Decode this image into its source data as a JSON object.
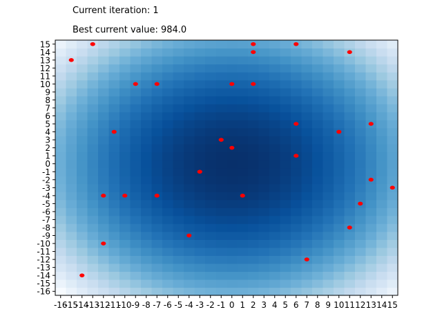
{
  "header": {
    "iteration_text": "Current iteration: 1",
    "best_value_text": "Best current value: 984.0"
  },
  "chart_data": {
    "type": "heatmap",
    "title": "",
    "xlabel": "",
    "ylabel": "",
    "xlim": [
      -16,
      15
    ],
    "ylim": [
      -16,
      15
    ],
    "colormap": "Blues",
    "grid": false,
    "heatmap_function": "x^2 + y^2",
    "x_tick_labels": [
      "-16",
      "-15",
      "-14",
      "-13",
      "-12",
      "-11",
      "-10",
      "-9",
      "-8",
      "-7",
      "-6",
      "-5",
      "-4",
      "-3",
      "-2",
      "-1",
      "0",
      "1",
      "2",
      "3",
      "4",
      "5",
      "6",
      "7",
      "8",
      "9",
      "10",
      "11",
      "12",
      "13",
      "14",
      "15"
    ],
    "y_tick_labels": [
      "-16",
      "-15",
      "-14",
      "-13",
      "-12",
      "-11",
      "-10",
      "-9",
      "-8",
      "-7",
      "-6",
      "-5",
      "-4",
      "-3",
      "-2",
      "-1",
      "0",
      "1",
      "2",
      "3",
      "4",
      "5",
      "6",
      "7",
      "8",
      "9",
      "10",
      "11",
      "12",
      "13",
      "14",
      "15"
    ],
    "points_color": "#ff0000",
    "points": [
      {
        "x": -13,
        "y": 15
      },
      {
        "x": 2,
        "y": 15
      },
      {
        "x": 6,
        "y": 15
      },
      {
        "x": 2,
        "y": 14
      },
      {
        "x": 11,
        "y": 14
      },
      {
        "x": -15,
        "y": 13
      },
      {
        "x": -9,
        "y": 10
      },
      {
        "x": -7,
        "y": 10
      },
      {
        "x": 0,
        "y": 10
      },
      {
        "x": 2,
        "y": 10
      },
      {
        "x": 6,
        "y": 5
      },
      {
        "x": 13,
        "y": 5
      },
      {
        "x": -11,
        "y": 4
      },
      {
        "x": 10,
        "y": 4
      },
      {
        "x": -1,
        "y": 3
      },
      {
        "x": 0,
        "y": 2
      },
      {
        "x": 6,
        "y": 1
      },
      {
        "x": -3,
        "y": -1
      },
      {
        "x": 13,
        "y": -2
      },
      {
        "x": 15,
        "y": -3
      },
      {
        "x": -12,
        "y": -4
      },
      {
        "x": -10,
        "y": -4
      },
      {
        "x": -7,
        "y": -4
      },
      {
        "x": 1,
        "y": -4
      },
      {
        "x": 12,
        "y": -5
      },
      {
        "x": 11,
        "y": -8
      },
      {
        "x": -4,
        "y": -9
      },
      {
        "x": -12,
        "y": -10
      },
      {
        "x": 7,
        "y": -12
      },
      {
        "x": -14,
        "y": -14
      }
    ]
  }
}
